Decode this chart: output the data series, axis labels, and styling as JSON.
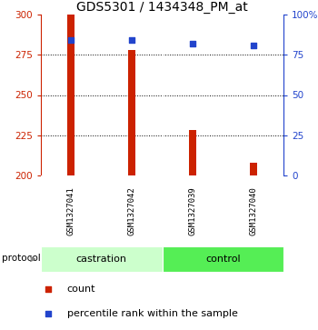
{
  "title": "GDS5301 / 1434348_PM_at",
  "samples": [
    "GSM1327041",
    "GSM1327042",
    "GSM1327039",
    "GSM1327040"
  ],
  "groups": [
    "castration",
    "castration",
    "control",
    "control"
  ],
  "group_labels": [
    "castration",
    "control"
  ],
  "red_values": [
    300,
    278,
    228,
    208
  ],
  "blue_values": [
    84,
    84,
    82,
    81
  ],
  "ylim_left": [
    200,
    300
  ],
  "ylim_right": [
    0,
    100
  ],
  "yticks_left": [
    200,
    225,
    250,
    275,
    300
  ],
  "yticks_right": [
    0,
    25,
    50,
    75,
    100
  ],
  "ytick_labels_right": [
    "0",
    "25",
    "50",
    "75",
    "100%"
  ],
  "bar_color": "#cc2200",
  "dot_color": "#2244cc",
  "bg_sample_area": "#d0d0d0",
  "bg_group_castration": "#ccffcc",
  "bg_group_control": "#55ee55",
  "title_fontsize": 10,
  "axis_color_left": "#cc2200",
  "axis_color_right": "#2244cc",
  "legend_count_label": "count",
  "legend_pct_label": "percentile rank within the sample",
  "protocol_label": "protocol",
  "bar_width": 0.12,
  "dot_size": 25
}
